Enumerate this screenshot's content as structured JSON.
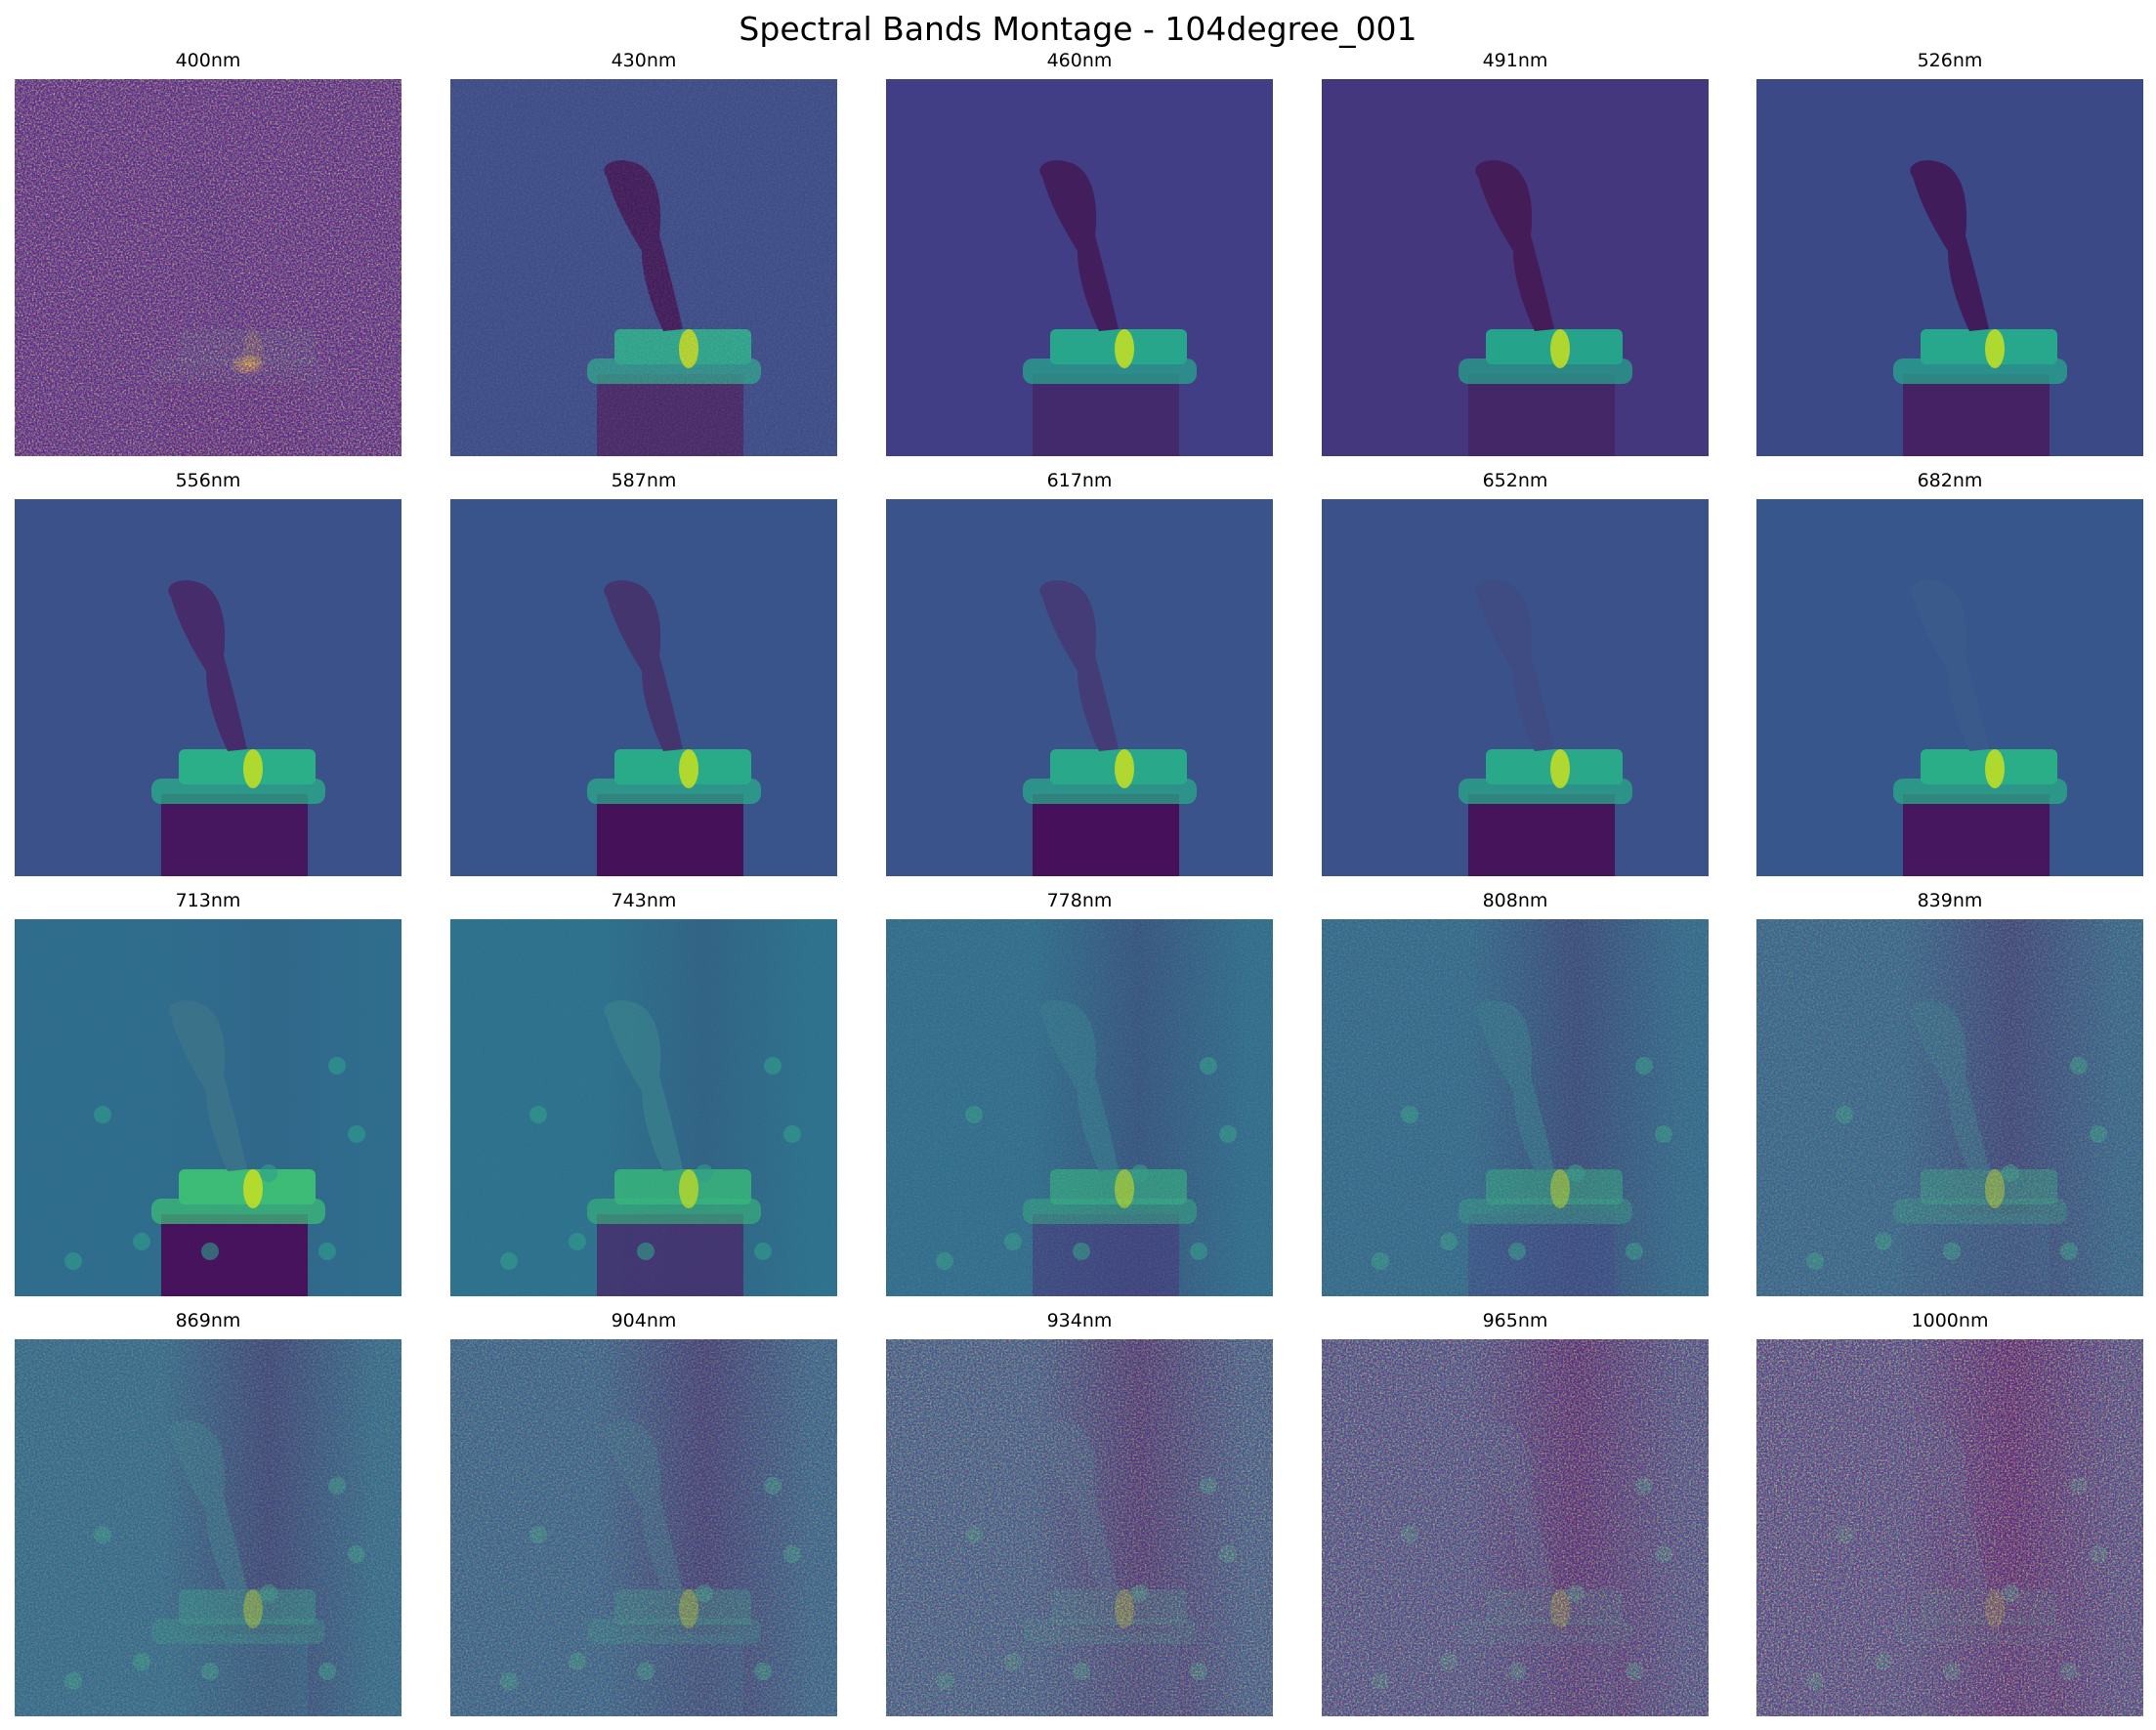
{
  "figure": {
    "title": "Spectral Bands Montage - 104degree_001",
    "colormap": "viridis",
    "palette": {
      "dark": "#440154",
      "indigo": "#3b528b",
      "teal": "#21918c",
      "green": "#5ec962",
      "yellow": "#fde725"
    }
  },
  "bands": [
    {
      "label": "400nm",
      "noise": 1.0,
      "bg": "#3b3f8a",
      "object": "#2c3d86",
      "cap": "#2c8f8b",
      "base": "#3a2f7a",
      "fade": 0.2,
      "drops": false
    },
    {
      "label": "430nm",
      "noise": 0.35,
      "bg": "#3a4f8b",
      "object": "#3f1e5c",
      "cap": "#2ba98d",
      "base": "#452c6a",
      "fade": 1.0,
      "drops": false
    },
    {
      "label": "460nm",
      "noise": 0.05,
      "bg": "#423e86",
      "object": "#431e5d",
      "cap": "#27a68c",
      "base": "#432a6c",
      "fade": 1.0,
      "drops": false
    },
    {
      "label": "491nm",
      "noise": 0.03,
      "bg": "#45377e",
      "object": "#441c58",
      "cap": "#26a38b",
      "base": "#442766",
      "fade": 1.0,
      "drops": false
    },
    {
      "label": "526nm",
      "noise": 0.03,
      "bg": "#3b4a87",
      "object": "#401c5a",
      "cap": "#27a88c",
      "base": "#442264",
      "fade": 1.0,
      "drops": false
    },
    {
      "label": "556nm",
      "noise": 0.03,
      "bg": "#3a518a",
      "object": "#472c6b",
      "cap": "#2aaf88",
      "base": "#46165e",
      "fade": 1.0,
      "drops": false
    },
    {
      "label": "587nm",
      "noise": 0.03,
      "bg": "#39548b",
      "object": "#45356f",
      "cap": "#29ab89",
      "base": "#45125a",
      "fade": 1.0,
      "drops": false
    },
    {
      "label": "617nm",
      "noise": 0.03,
      "bg": "#3a538b",
      "object": "#443c77",
      "cap": "#29a88a",
      "base": "#46115a",
      "fade": 1.0,
      "drops": false
    },
    {
      "label": "652nm",
      "noise": 0.03,
      "bg": "#3b5189",
      "object": "#3f4c83",
      "cap": "#2aa98a",
      "base": "#46145b",
      "fade": 1.0,
      "drops": false
    },
    {
      "label": "682nm",
      "noise": 0.05,
      "bg": "#37568b",
      "object": "#3a5a8b",
      "cap": "#2aae88",
      "base": "#46175e",
      "fade": 1.0,
      "drops": false
    },
    {
      "label": "713nm",
      "noise": 0.1,
      "bg": "#2f6d8d",
      "object": "#3a728a",
      "cap": "#3cbc77",
      "base": "#46135c",
      "fade": 1.0,
      "drops": true
    },
    {
      "label": "743nm",
      "noise": 0.2,
      "bg": "#2c738e",
      "object": "#357c8c",
      "cap": "#35b77a",
      "base": "#442e6d",
      "fade": 0.85,
      "drops": true
    },
    {
      "label": "778nm",
      "noise": 0.35,
      "bg": "#2d718e",
      "object": "#31788d",
      "cap": "#2eaf82",
      "base": "#3d3f7f",
      "fade": 0.7,
      "drops": true
    },
    {
      "label": "808nm",
      "noise": 0.45,
      "bg": "#2d708e",
      "object": "#2f7a8d",
      "cap": "#2aa884",
      "base": "#36508a",
      "fade": 0.6,
      "drops": true
    },
    {
      "label": "839nm",
      "noise": 0.55,
      "bg": "#2e6f8e",
      "object": "#2e798d",
      "cap": "#29a386",
      "base": "#2f6a8d",
      "fade": 0.55,
      "drops": true
    },
    {
      "label": "869nm",
      "noise": 0.55,
      "bg": "#2b748e",
      "object": "#2e7e8d",
      "cap": "#27a08a",
      "base": "#2a778e",
      "fade": 0.5,
      "drops": true
    },
    {
      "label": "904nm",
      "noise": 0.65,
      "bg": "#2c718e",
      "object": "#2d7a8d",
      "cap": "#289c8a",
      "base": "#2b748e",
      "fade": 0.45,
      "drops": true
    },
    {
      "label": "934nm",
      "noise": 0.8,
      "bg": "#2c728e",
      "object": "#2d788d",
      "cap": "#25978b",
      "base": "#2b748e",
      "fade": 0.4,
      "drops": true
    },
    {
      "label": "965nm",
      "noise": 0.9,
      "bg": "#2f6b8e",
      "object": "#2e748e",
      "cap": "#23948c",
      "base": "#2e6e8e",
      "fade": 0.35,
      "drops": true
    },
    {
      "label": "1000nm",
      "noise": 1.0,
      "bg": "#306a8e",
      "object": "#2f708e",
      "cap": "#22918c",
      "base": "#2f6c8e",
      "fade": 0.3,
      "drops": true
    }
  ]
}
